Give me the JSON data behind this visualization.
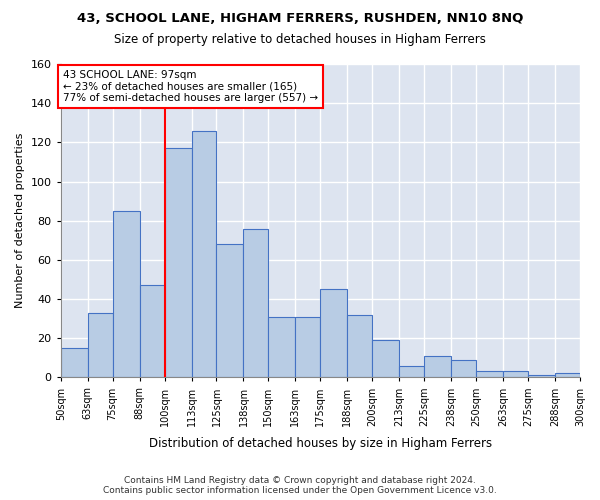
{
  "title": "43, SCHOOL LANE, HIGHAM FERRERS, RUSHDEN, NN10 8NQ",
  "subtitle": "Size of property relative to detached houses in Higham Ferrers",
  "xlabel": "Distribution of detached houses by size in Higham Ferrers",
  "ylabel": "Number of detached properties",
  "bin_edges": [
    50,
    63,
    75,
    88,
    100,
    113,
    125,
    138,
    150,
    163,
    175,
    188,
    200,
    213,
    225,
    238,
    250,
    263,
    275,
    288,
    300
  ],
  "bin_labels": [
    "50sqm",
    "63sqm",
    "75sqm",
    "88sqm",
    "100sqm",
    "113sqm",
    "125sqm",
    "138sqm",
    "150sqm",
    "163sqm",
    "175sqm",
    "188sqm",
    "200sqm",
    "213sqm",
    "225sqm",
    "238sqm",
    "250sqm",
    "263sqm",
    "275sqm",
    "288sqm",
    "300sqm"
  ],
  "counts": [
    15,
    33,
    85,
    47,
    117,
    126,
    68,
    76,
    31,
    31,
    45,
    32,
    19,
    6,
    11,
    9,
    3,
    3,
    1,
    2
  ],
  "bar_color": "#b8cce4",
  "bar_edge_color": "#4472c4",
  "vline_x": 100,
  "vline_color": "red",
  "annotation_text": "43 SCHOOL LANE: 97sqm\n← 23% of detached houses are smaller (165)\n77% of semi-detached houses are larger (557) →",
  "annotation_box_color": "white",
  "annotation_box_edge_color": "red",
  "ylim": [
    0,
    160
  ],
  "yticks": [
    0,
    20,
    40,
    60,
    80,
    100,
    120,
    140,
    160
  ],
  "background_color": "#dde4f0",
  "grid_color": "white",
  "footer_line1": "Contains HM Land Registry data © Crown copyright and database right 2024.",
  "footer_line2": "Contains public sector information licensed under the Open Government Licence v3.0."
}
